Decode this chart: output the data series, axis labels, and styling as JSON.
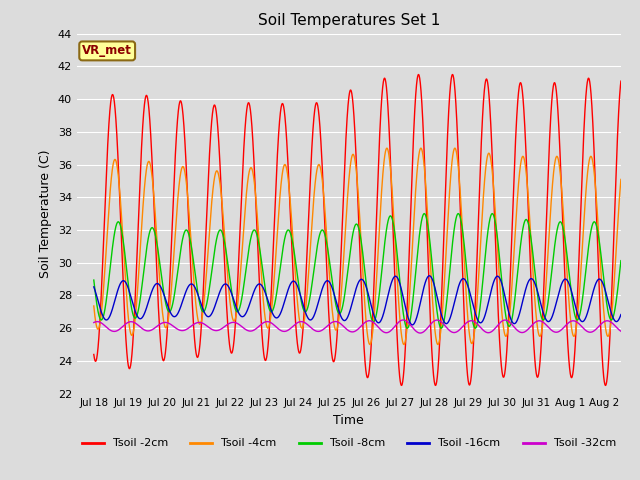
{
  "title": "Soil Temperatures Set 1",
  "xlabel": "Time",
  "ylabel": "Soil Temperature (C)",
  "ylim": [
    22,
    44
  ],
  "background_color": "#dcdcdc",
  "plot_bg_color": "#dcdcdc",
  "annotation_text": "VR_met",
  "annotation_bg": "#ffff99",
  "annotation_border": "#8b6914",
  "annotation_text_color": "#8b0000",
  "grid_color": "#ffffff",
  "series": [
    {
      "label": "Tsoil -2cm",
      "color": "#ff0000",
      "mean": 32.0,
      "amp_profile": [
        8.0,
        8.5,
        8.0,
        7.8,
        7.5,
        8.0,
        7.5,
        8.0,
        9.0,
        9.5,
        9.5,
        9.5,
        9.0,
        9.0,
        9.0,
        9.5
      ],
      "phase": 0.0
    },
    {
      "label": "Tsoil -4cm",
      "color": "#ff8800",
      "mean": 31.0,
      "amp_profile": [
        5.0,
        5.5,
        5.0,
        4.8,
        4.5,
        5.0,
        5.0,
        5.0,
        6.0,
        6.0,
        6.0,
        6.0,
        5.5,
        5.5,
        5.5,
        5.5
      ],
      "phase": 0.07
    },
    {
      "label": "Tsoil -8cm",
      "color": "#00cc00",
      "mean": 29.5,
      "amp_profile": [
        3.0,
        3.0,
        2.5,
        2.5,
        2.5,
        2.5,
        2.5,
        2.5,
        3.0,
        3.5,
        3.5,
        3.5,
        3.5,
        3.0,
        3.0,
        3.0
      ],
      "phase": 0.17
    },
    {
      "label": "Tsoil -16cm",
      "color": "#0000cc",
      "mean": 27.7,
      "amp_profile": [
        1.2,
        1.2,
        1.0,
        1.0,
        1.0,
        1.0,
        1.2,
        1.2,
        1.3,
        1.5,
        1.5,
        1.3,
        1.5,
        1.3,
        1.3,
        1.3
      ],
      "phase": 0.32
    },
    {
      "label": "Tsoil -32cm",
      "color": "#cc00cc",
      "mean": 26.1,
      "amp_profile": [
        0.3,
        0.3,
        0.25,
        0.25,
        0.25,
        0.3,
        0.3,
        0.3,
        0.35,
        0.4,
        0.4,
        0.35,
        0.4,
        0.35,
        0.35,
        0.35
      ],
      "phase": 0.55
    }
  ],
  "xtick_labels": [
    "Jul 18",
    "Jul 19",
    "Jul 20",
    "Jul 21",
    "Jul 22",
    "Jul 23",
    "Jul 24",
    "Jul 25",
    "Jul 26",
    "Jul 27",
    "Jul 28",
    "Jul 29",
    "Jul 30",
    "Jul 31",
    "Aug 1",
    "Aug 2"
  ],
  "xtick_positions": [
    0,
    1,
    2,
    3,
    4,
    5,
    6,
    7,
    8,
    9,
    10,
    11,
    12,
    13,
    14,
    15
  ],
  "ytick_values": [
    22,
    24,
    26,
    28,
    30,
    32,
    34,
    36,
    38,
    40,
    42,
    44
  ]
}
